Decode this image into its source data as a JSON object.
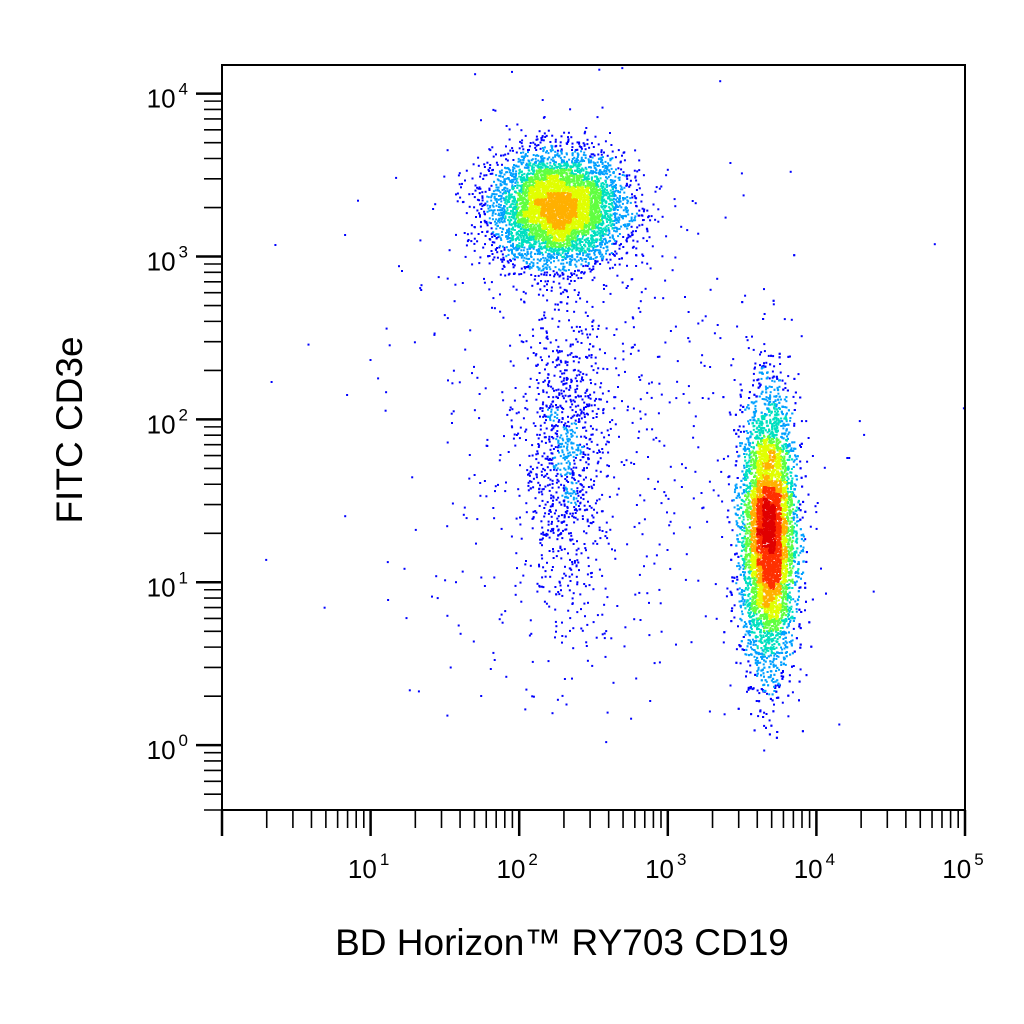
{
  "chart_data": {
    "type": "scatter",
    "subtype": "density-dot-plot",
    "title": "",
    "xlabel": "BD Horizon™ RY703  CD19",
    "ylabel": "FITC  CD3e",
    "xscale": "log",
    "yscale": "log",
    "xlim": [
      1,
      100000
    ],
    "ylim": [
      0.4,
      15000
    ],
    "x_ticks": [
      {
        "base": "10",
        "exp": "1",
        "value": 10
      },
      {
        "base": "10",
        "exp": "2",
        "value": 100
      },
      {
        "base": "10",
        "exp": "3",
        "value": 1000
      },
      {
        "base": "10",
        "exp": "4",
        "value": 10000
      },
      {
        "base": "10",
        "exp": "5",
        "value": 100000
      }
    ],
    "y_ticks": [
      {
        "base": "10",
        "exp": "0",
        "value": 1
      },
      {
        "base": "10",
        "exp": "1",
        "value": 10
      },
      {
        "base": "10",
        "exp": "2",
        "value": 100
      },
      {
        "base": "10",
        "exp": "3",
        "value": 1000
      },
      {
        "base": "10",
        "exp": "4",
        "value": 10000
      }
    ],
    "populations": [
      {
        "center_x": 180,
        "center_y": 2000,
        "spread_x_decades": 0.22,
        "spread_y_decades": 0.17,
        "relative_count": 0.36
      },
      {
        "center_x": 4700,
        "center_y": 20,
        "spread_x_decades": 0.09,
        "spread_y_decades": 0.4,
        "relative_count": 0.54
      },
      {
        "center_x": 200,
        "center_y": 60,
        "spread_x_decades": 0.14,
        "spread_y_decades": 0.45,
        "relative_count": 0.06
      },
      {
        "center_x": 300,
        "center_y": 100,
        "spread_x_decades": 0.7,
        "spread_y_decades": 0.9,
        "relative_count": 0.04
      }
    ],
    "colormap": [
      "#0000ff",
      "#00a0ff",
      "#00e0c0",
      "#60ff40",
      "#e0ff00",
      "#ffb000",
      "#ff3000",
      "#e00000"
    ],
    "grid": false,
    "legend": "none"
  }
}
